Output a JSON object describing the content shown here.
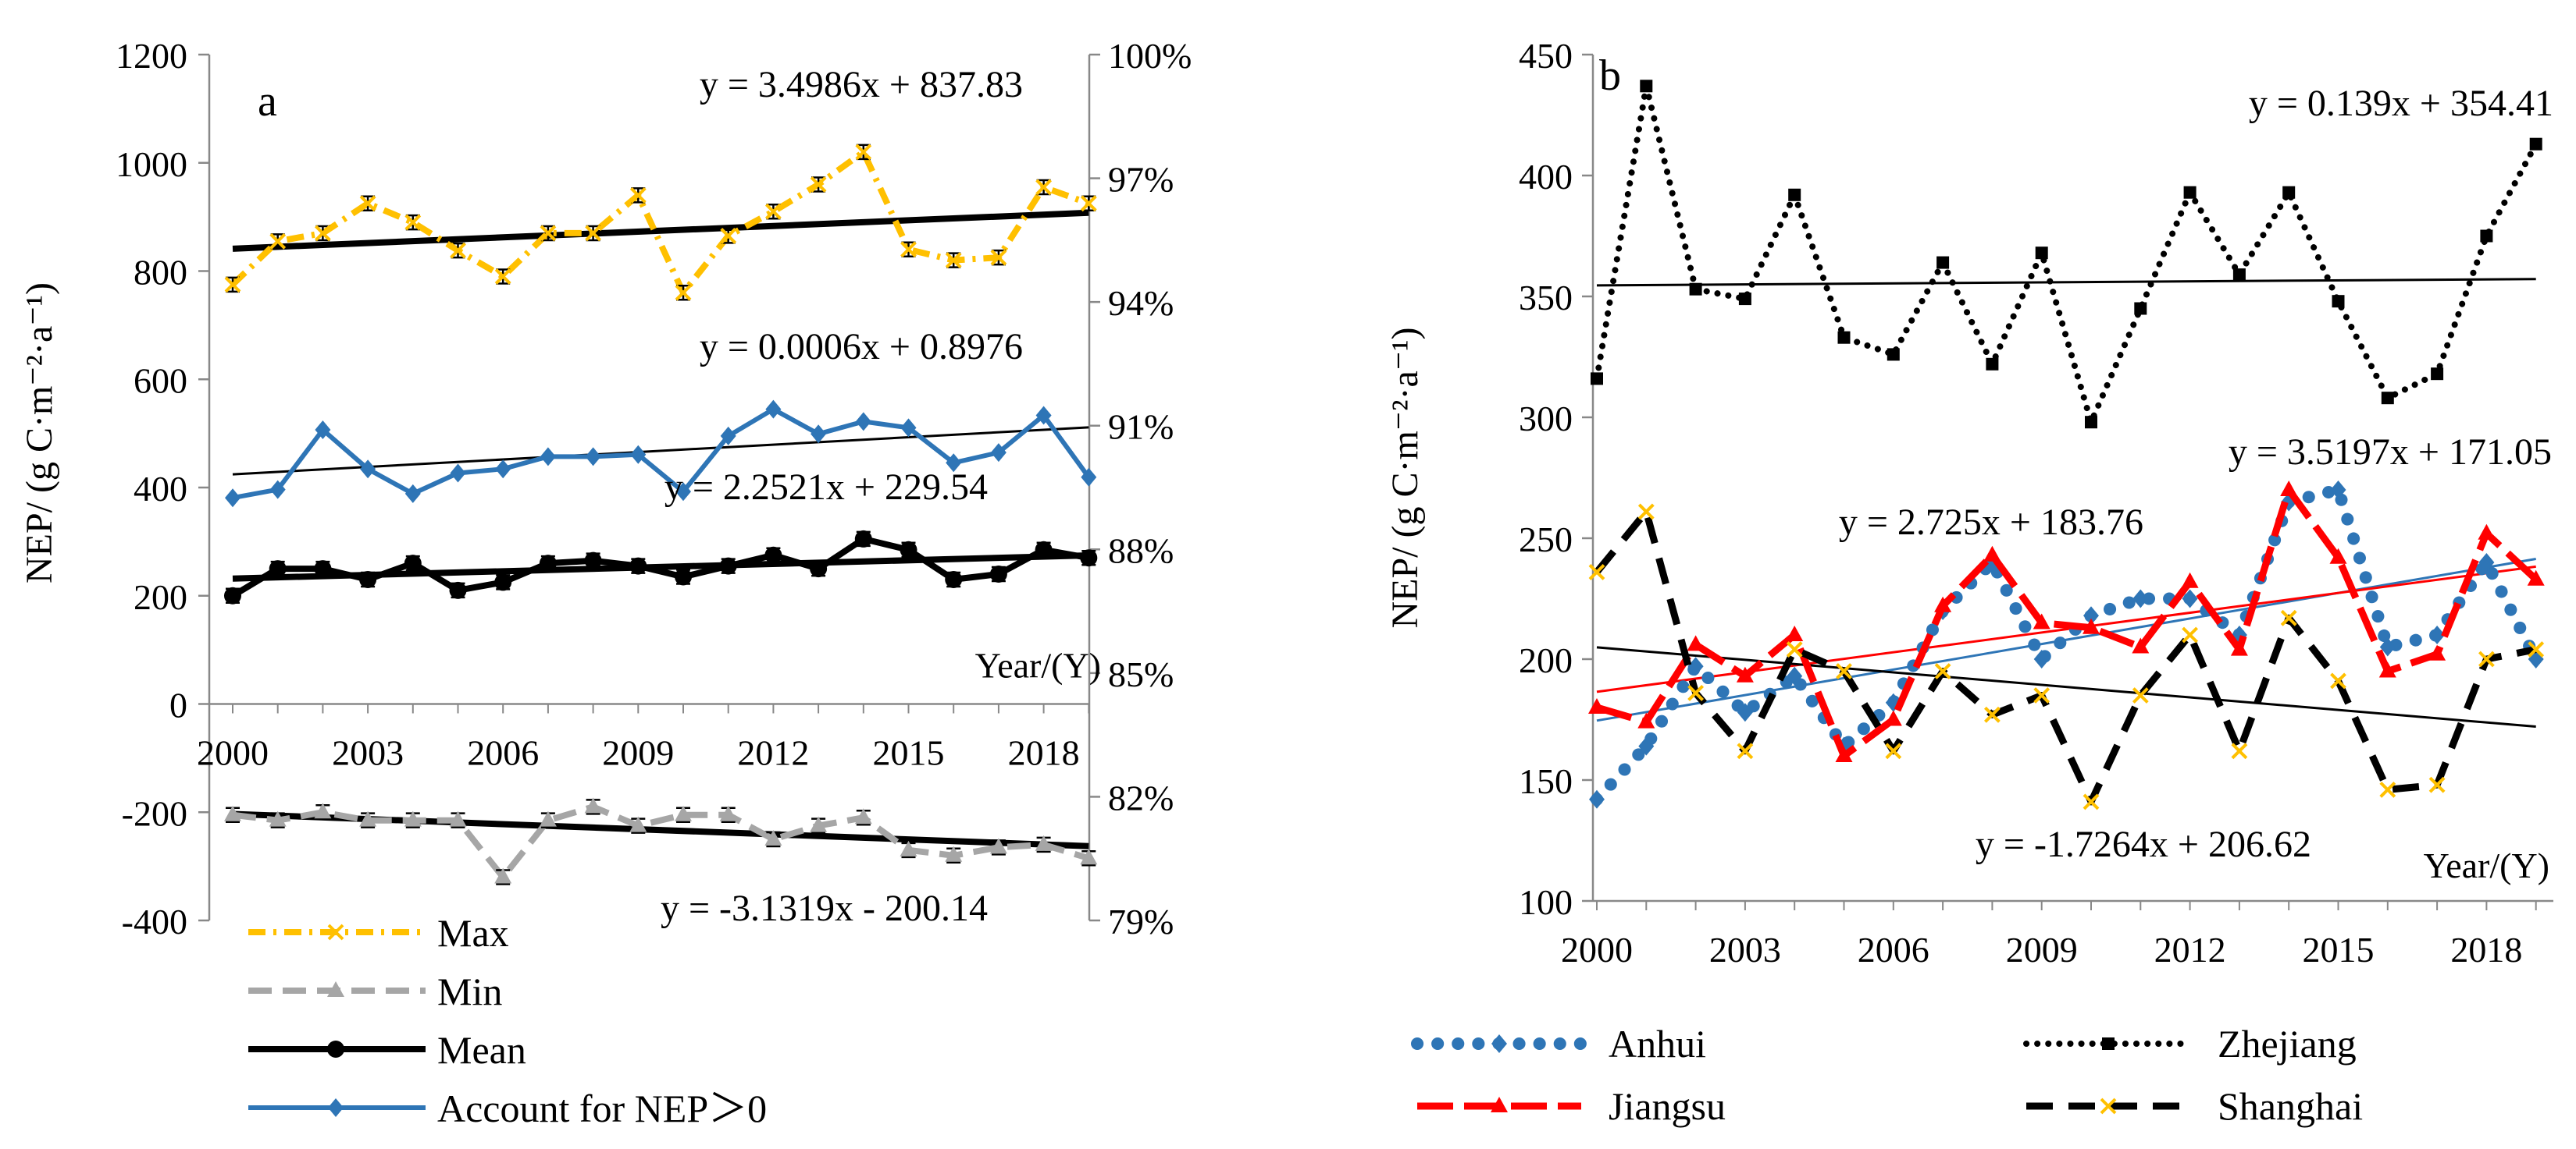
{
  "chart_data": [
    {
      "panel_label": "a",
      "type": "line",
      "ylabel": "NEP/ (g C·m⁻²·a⁻¹)",
      "xlabel": "Year/(Y)",
      "ylim": [
        -400,
        1200
      ],
      "yticks": [
        -400,
        -200,
        0,
        200,
        400,
        600,
        800,
        1000,
        1200
      ],
      "y2lim": [
        0.79,
        1.0
      ],
      "y2ticks": [
        {
          "v": 0.79,
          "label": "79%"
        },
        {
          "v": 0.82,
          "label": "82%"
        },
        {
          "v": 0.85,
          "label": "85%"
        },
        {
          "v": 0.88,
          "label": "88%"
        },
        {
          "v": 0.91,
          "label": "91%"
        },
        {
          "v": 0.94,
          "label": "94%"
        },
        {
          "v": 0.97,
          "label": "97%"
        },
        {
          "v": 1.0,
          "label": "100%"
        }
      ],
      "xticks": [
        "2000",
        "2003",
        "2006",
        "2009",
        "2012",
        "2015",
        "2018"
      ],
      "x": [
        2000,
        2001,
        2002,
        2003,
        2004,
        2005,
        2006,
        2007,
        2008,
        2009,
        2010,
        2011,
        2012,
        2013,
        2014,
        2015,
        2016,
        2017,
        2018,
        2019
      ],
      "series": [
        {
          "name": "Max",
          "color": "#FFC000",
          "axis": "left",
          "values": [
            775,
            855,
            870,
            925,
            890,
            838,
            790,
            870,
            870,
            940,
            760,
            865,
            910,
            960,
            1020,
            840,
            820,
            825,
            955,
            925
          ]
        },
        {
          "name": "Min",
          "color": "#A6A6A6",
          "axis": "left",
          "values": [
            -205,
            -215,
            -200,
            -215,
            -215,
            -215,
            -320,
            -215,
            -190,
            -225,
            -205,
            -205,
            -250,
            -225,
            -210,
            -270,
            -280,
            -265,
            -260,
            -285
          ]
        },
        {
          "name": "Mean",
          "color": "#000000",
          "axis": "left",
          "values": [
            200,
            250,
            250,
            230,
            260,
            210,
            225,
            260,
            265,
            255,
            235,
            255,
            275,
            250,
            305,
            285,
            230,
            240,
            285,
            270
          ]
        },
        {
          "name": "Account for NEP＞0",
          "color": "#2E75B6",
          "axis": "right",
          "values": [
            0.8925,
            0.8945,
            0.909,
            0.8995,
            0.8935,
            0.8985,
            0.8995,
            0.9025,
            0.9025,
            0.903,
            0.894,
            0.9075,
            0.914,
            0.908,
            0.911,
            0.9095,
            0.901,
            0.9035,
            0.9125,
            0.8975
          ]
        }
      ],
      "trendlines": [
        {
          "series": "Max",
          "equation": "y = 3.4986x + 837.83",
          "slope": 3.4986,
          "intercept": 837.83,
          "axis": "left",
          "weight": "bold"
        },
        {
          "series": "Account for NEP＞0",
          "equation": "y = 0.0006x + 0.8976",
          "slope": 0.0006,
          "intercept": 0.8976,
          "axis": "right",
          "weight": "thin"
        },
        {
          "series": "Mean",
          "equation": "y = 2.2521x + 229.54",
          "slope": 2.2521,
          "intercept": 229.54,
          "axis": "left",
          "weight": "bold"
        },
        {
          "series": "Min",
          "equation": "y = -3.1319x - 200.14",
          "slope": -3.1319,
          "intercept": -200.14,
          "axis": "left",
          "weight": "bold"
        }
      ],
      "legend": {
        "placement": "bottom-left",
        "entries": [
          "Max",
          "Min",
          "Mean",
          "Account for NEP＞0"
        ]
      }
    },
    {
      "panel_label": "b",
      "type": "line",
      "ylabel": "NEP/ (g C·m⁻²·a⁻¹)",
      "xlabel": "Year/(Y)",
      "ylim": [
        100,
        450
      ],
      "yticks": [
        100,
        150,
        200,
        250,
        300,
        350,
        400,
        450
      ],
      "xticks": [
        "2000",
        "2003",
        "2006",
        "2009",
        "2012",
        "2015",
        "2018"
      ],
      "x": [
        2000,
        2001,
        2002,
        2003,
        2004,
        2005,
        2006,
        2007,
        2008,
        2009,
        2010,
        2011,
        2012,
        2013,
        2014,
        2015,
        2016,
        2017,
        2018,
        2019
      ],
      "series": [
        {
          "name": "Anhui",
          "color": "#2E75B6",
          "values": [
            142,
            164,
            197,
            178,
            193,
            164,
            182,
            220,
            240,
            200,
            218,
            225,
            225,
            210,
            265,
            270,
            205,
            210,
            240,
            200
          ]
        },
        {
          "name": "Zhejiang",
          "color": "#000000",
          "values": [
            316,
            437,
            353,
            349,
            392,
            333,
            326,
            364,
            322,
            368,
            298,
            345,
            393,
            359,
            393,
            348,
            308,
            318,
            375,
            413
          ]
        },
        {
          "name": "Jiangsu",
          "color": "#FF0000",
          "values": [
            180,
            174,
            206,
            193,
            210,
            160,
            175,
            222,
            243,
            215,
            213,
            205,
            232,
            204,
            270,
            242,
            195,
            202,
            252,
            233
          ]
        },
        {
          "name": "Shanghai",
          "color": "#000000",
          "values": [
            236,
            261,
            186,
            162,
            204,
            195,
            162,
            195,
            177,
            185,
            141,
            185,
            210,
            162,
            217,
            191,
            146,
            148,
            200,
            204
          ]
        }
      ],
      "trendlines": [
        {
          "series": "Zhejiang",
          "equation": "y = 0.139x + 354.41",
          "slope": 0.139,
          "intercept": 354.41,
          "color": "#000000"
        },
        {
          "series": "Anhui",
          "equation": "y = 3.5197x + 171.05",
          "slope": 3.5197,
          "intercept": 171.05,
          "color": "#2E75B6"
        },
        {
          "series": "Jiangsu",
          "equation": "y = 2.725x + 183.76",
          "slope": 2.725,
          "intercept": 183.76,
          "color": "#FF0000"
        },
        {
          "series": "Shanghai",
          "equation": "y = -1.7264x + 206.62",
          "slope": -1.7264,
          "intercept": 206.62,
          "color": "#000000"
        }
      ],
      "legend": {
        "placement": "bottom",
        "entries": [
          "Anhui",
          "Zhejiang",
          "Jiangsu",
          "Shanghai"
        ]
      }
    }
  ]
}
